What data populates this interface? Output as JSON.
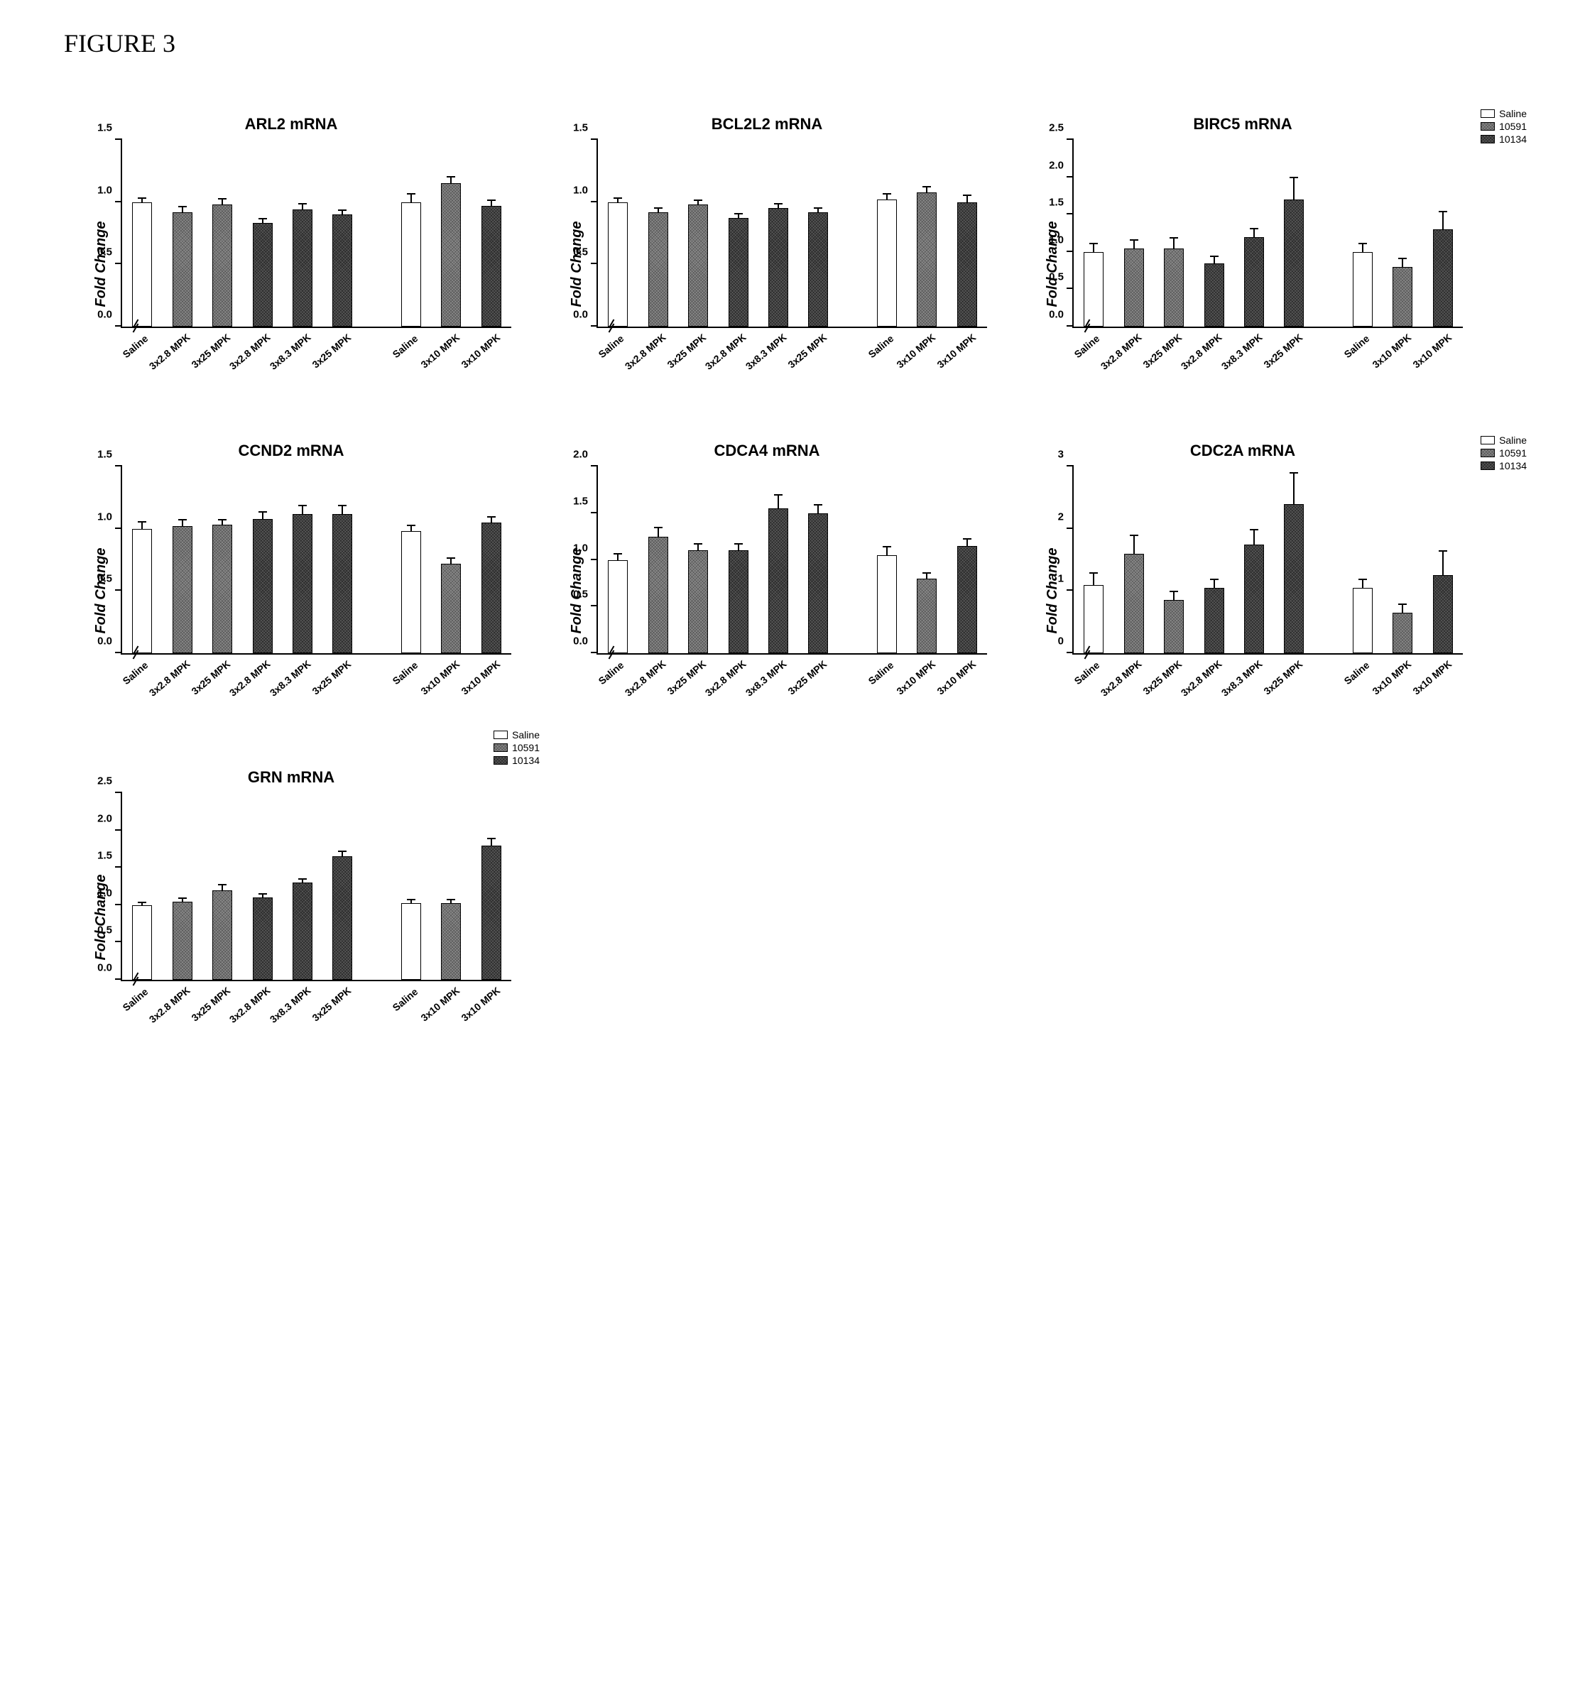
{
  "figure_label": "FIGURE 3",
  "legend": {
    "items": [
      {
        "label": "Saline",
        "fill": "fill-white"
      },
      {
        "label": "10591",
        "fill": "fill-gray"
      },
      {
        "label": "10134",
        "fill": "fill-dark"
      }
    ]
  },
  "fills": [
    "fill-white",
    "fill-gray",
    "fill-dark"
  ],
  "group1_fills": [
    "fill-white",
    "fill-gray",
    "fill-gray",
    "fill-dark",
    "fill-dark",
    "fill-dark"
  ],
  "group2_fills": [
    "fill-white",
    "fill-gray",
    "fill-dark"
  ],
  "x_labels_g1": [
    "Saline",
    "3x2.8 MPK",
    "3x25 MPK",
    "3x2.8 MPK",
    "3x8.3 MPK",
    "3x25 MPK"
  ],
  "x_labels_g2": [
    "Saline",
    "3x10 MPK",
    "3x10 MPK"
  ],
  "ylabel": "Fold Change",
  "panels": [
    {
      "title": "ARL2 mRNA",
      "show_legend": false,
      "ymax": 1.5,
      "yticks": [
        0.0,
        0.5,
        1.0,
        1.5
      ],
      "g1": [
        {
          "v": 1.0,
          "e": 0.04
        },
        {
          "v": 0.92,
          "e": 0.05
        },
        {
          "v": 0.98,
          "e": 0.05
        },
        {
          "v": 0.83,
          "e": 0.04
        },
        {
          "v": 0.94,
          "e": 0.05
        },
        {
          "v": 0.9,
          "e": 0.04
        }
      ],
      "g2": [
        {
          "v": 1.0,
          "e": 0.07
        },
        {
          "v": 1.15,
          "e": 0.06
        },
        {
          "v": 0.97,
          "e": 0.05
        }
      ]
    },
    {
      "title": "BCL2L2 mRNA",
      "show_legend": false,
      "ymax": 1.5,
      "yticks": [
        0.0,
        0.5,
        1.0,
        1.5
      ],
      "g1": [
        {
          "v": 1.0,
          "e": 0.04
        },
        {
          "v": 0.92,
          "e": 0.04
        },
        {
          "v": 0.98,
          "e": 0.04
        },
        {
          "v": 0.87,
          "e": 0.04
        },
        {
          "v": 0.95,
          "e": 0.04
        },
        {
          "v": 0.92,
          "e": 0.04
        }
      ],
      "g2": [
        {
          "v": 1.02,
          "e": 0.05
        },
        {
          "v": 1.08,
          "e": 0.05
        },
        {
          "v": 1.0,
          "e": 0.06
        }
      ]
    },
    {
      "title": "BIRC5 mRNA",
      "show_legend": true,
      "ymax": 2.5,
      "yticks": [
        0.0,
        0.5,
        1.0,
        1.5,
        2.0,
        2.5
      ],
      "g1": [
        {
          "v": 1.0,
          "e": 0.12
        },
        {
          "v": 1.05,
          "e": 0.12
        },
        {
          "v": 1.05,
          "e": 0.15
        },
        {
          "v": 0.85,
          "e": 0.1
        },
        {
          "v": 1.2,
          "e": 0.12
        },
        {
          "v": 1.7,
          "e": 0.3
        }
      ],
      "g2": [
        {
          "v": 1.0,
          "e": 0.12
        },
        {
          "v": 0.8,
          "e": 0.12
        },
        {
          "v": 1.3,
          "e": 0.25
        }
      ]
    },
    {
      "title": "CCND2 mRNA",
      "show_legend": false,
      "ymax": 1.5,
      "yticks": [
        0.0,
        0.5,
        1.0,
        1.5
      ],
      "g1": [
        {
          "v": 1.0,
          "e": 0.06
        },
        {
          "v": 1.02,
          "e": 0.06
        },
        {
          "v": 1.03,
          "e": 0.05
        },
        {
          "v": 1.08,
          "e": 0.06
        },
        {
          "v": 1.12,
          "e": 0.07
        },
        {
          "v": 1.12,
          "e": 0.07
        }
      ],
      "g2": [
        {
          "v": 0.98,
          "e": 0.05
        },
        {
          "v": 0.72,
          "e": 0.05
        },
        {
          "v": 1.05,
          "e": 0.05
        }
      ]
    },
    {
      "title": "CDCA4 mRNA",
      "show_legend": false,
      "ymax": 2.0,
      "yticks": [
        0.0,
        0.5,
        1.0,
        1.5,
        2.0
      ],
      "g1": [
        {
          "v": 1.0,
          "e": 0.07
        },
        {
          "v": 1.25,
          "e": 0.1
        },
        {
          "v": 1.1,
          "e": 0.08
        },
        {
          "v": 1.1,
          "e": 0.08
        },
        {
          "v": 1.55,
          "e": 0.15
        },
        {
          "v": 1.5,
          "e": 0.1
        }
      ],
      "g2": [
        {
          "v": 1.05,
          "e": 0.1
        },
        {
          "v": 0.8,
          "e": 0.07
        },
        {
          "v": 1.15,
          "e": 0.08
        }
      ]
    },
    {
      "title": "CDC2A mRNA",
      "show_legend": true,
      "ymax": 3,
      "yticks": [
        0,
        1,
        2,
        3
      ],
      "g1": [
        {
          "v": 1.1,
          "e": 0.2
        },
        {
          "v": 1.6,
          "e": 0.3
        },
        {
          "v": 0.85,
          "e": 0.15
        },
        {
          "v": 1.05,
          "e": 0.15
        },
        {
          "v": 1.75,
          "e": 0.25
        },
        {
          "v": 2.4,
          "e": 0.5
        }
      ],
      "g2": [
        {
          "v": 1.05,
          "e": 0.15
        },
        {
          "v": 0.65,
          "e": 0.15
        },
        {
          "v": 1.25,
          "e": 0.4
        }
      ]
    },
    {
      "title": "GRN mRNA",
      "show_legend": true,
      "legend_pos": "right-inset",
      "ymax": 2.5,
      "yticks": [
        0.0,
        0.5,
        1.0,
        1.5,
        2.0,
        2.5
      ],
      "g1": [
        {
          "v": 1.0,
          "e": 0.05
        },
        {
          "v": 1.05,
          "e": 0.05
        },
        {
          "v": 1.2,
          "e": 0.08
        },
        {
          "v": 1.1,
          "e": 0.06
        },
        {
          "v": 1.3,
          "e": 0.06
        },
        {
          "v": 1.65,
          "e": 0.08
        }
      ],
      "g2": [
        {
          "v": 1.03,
          "e": 0.05
        },
        {
          "v": 1.03,
          "e": 0.05
        },
        {
          "v": 1.8,
          "e": 0.1
        }
      ]
    }
  ]
}
